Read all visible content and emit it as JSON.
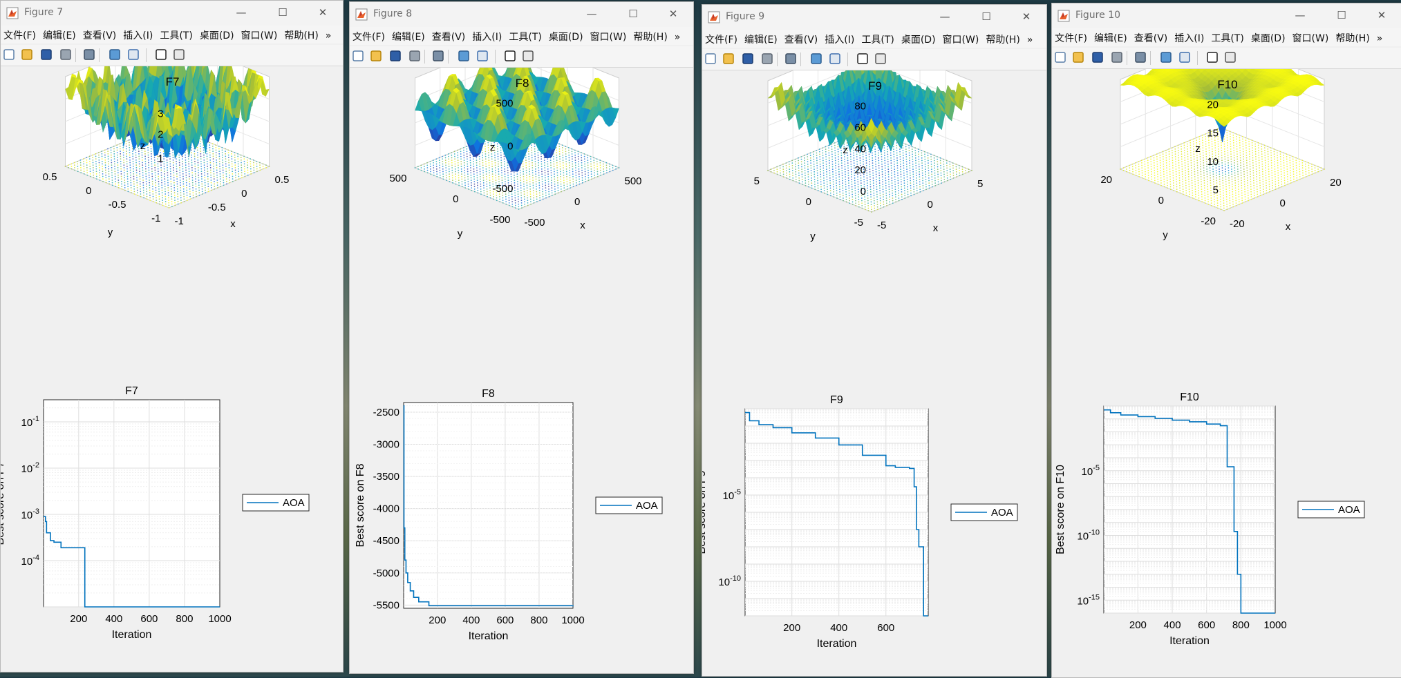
{
  "menu": [
    "文件(F)",
    "编辑(E)",
    "查看(V)",
    "插入(I)",
    "工具(T)",
    "桌面(D)",
    "窗口(W)",
    "帮助(H)"
  ],
  "menu_overflow": "»",
  "window_controls": {
    "minimize": "—",
    "maximize": "☐",
    "close": "✕"
  },
  "figures": [
    {
      "window_title": "Figure 7",
      "surface": {
        "title": "F7",
        "xlabel": "x",
        "ylabel": "y",
        "zlabel": "z",
        "zticks": [
          "1",
          "2",
          "3"
        ],
        "yticks": [
          "0.5",
          "0",
          "-0.5",
          "-1"
        ],
        "xticks": [
          "-1",
          "-0.5",
          "0",
          "0.5"
        ]
      },
      "convergence": {
        "title": "F7",
        "xlabel": "Iteration",
        "ylabel": "Best score on F7",
        "xticks": [
          "200",
          "400",
          "600",
          "800",
          "1000"
        ],
        "yticks": [
          {
            "b": "10",
            "e": "-1"
          },
          {
            "b": "10",
            "e": "-2"
          },
          {
            "b": "10",
            "e": "-3"
          },
          {
            "b": "10",
            "e": "-4"
          }
        ],
        "legend": "AOA"
      }
    },
    {
      "window_title": "Figure 8",
      "surface": {
        "title": "F8",
        "xlabel": "x",
        "ylabel": "y",
        "zlabel": "z",
        "zticks": [
          "500",
          "0",
          "-500"
        ],
        "yticks": [
          "500",
          "0",
          "-500"
        ],
        "xticks": [
          "-500",
          "0",
          "500"
        ]
      },
      "convergence": {
        "title": "F8",
        "xlabel": "Iteration",
        "ylabel": "Best score on F8",
        "xticks": [
          "200",
          "400",
          "600",
          "800",
          "1000"
        ],
        "yticks": [
          "-2500",
          "-3000",
          "-3500",
          "-4000",
          "-4500",
          "-5000",
          "-5500"
        ],
        "legend": "AOA"
      }
    },
    {
      "window_title": "Figure 9",
      "surface": {
        "title": "F9",
        "xlabel": "x",
        "ylabel": "y",
        "zlabel": "z",
        "zticks": [
          "80",
          "60",
          "40",
          "20",
          "0"
        ],
        "yticks": [
          "5",
          "0",
          "-5"
        ],
        "xticks": [
          "-5",
          "0",
          "5"
        ]
      },
      "convergence": {
        "title": "F9",
        "xlabel": "Iteration",
        "ylabel": "Best score on F9",
        "xticks": [
          "200",
          "400",
          "600"
        ],
        "yticks": [
          {
            "b": "10",
            "e": "-5"
          },
          {
            "b": "10",
            "e": "-10"
          }
        ],
        "legend": "AOA"
      }
    },
    {
      "window_title": "Figure 10",
      "surface": {
        "title": "F10",
        "xlabel": "x",
        "ylabel": "y",
        "zlabel": "z",
        "zticks": [
          "20",
          "15",
          "10",
          "5"
        ],
        "yticks": [
          "20",
          "0",
          "-20"
        ],
        "xticks": [
          "-20",
          "0",
          "20"
        ]
      },
      "convergence": {
        "title": "F10",
        "xlabel": "Iteration",
        "ylabel": "Best score on F10",
        "xticks": [
          "200",
          "400",
          "600",
          "800",
          "1000"
        ],
        "yticks": [
          {
            "b": "10",
            "e": "-5"
          },
          {
            "b": "10",
            "e": "-10"
          },
          {
            "b": "10",
            "e": "-15"
          }
        ],
        "legend": "AOA"
      }
    }
  ],
  "chart_data": [
    {
      "type": "line",
      "title": "F7",
      "xlabel": "Iteration",
      "ylabel": "Best score on F7",
      "yscale": "log",
      "xlim": [
        1,
        1000
      ],
      "ylim": [
        1e-05,
        0.3
      ],
      "series": [
        {
          "name": "AOA",
          "x": [
            1,
            12,
            18,
            40,
            60,
            100,
            230,
            235,
            1000
          ],
          "y": [
            0.0009,
            0.0007,
            0.0004,
            0.00027,
            0.00025,
            0.00019,
            0.00019,
            1e-05,
            1e-05
          ]
        }
      ],
      "color": "#0072BD",
      "grid": true,
      "legend": "right"
    },
    {
      "type": "line",
      "title": "F8",
      "xlabel": "Iteration",
      "ylabel": "Best score on F8",
      "xlim": [
        1,
        1000
      ],
      "ylim": [
        -5550,
        -2350
      ],
      "series": [
        {
          "name": "AOA",
          "x": [
            1,
            3,
            8,
            15,
            25,
            40,
            60,
            90,
            150,
            1000
          ],
          "y": [
            -2400,
            -4300,
            -4800,
            -5000,
            -5150,
            -5280,
            -5380,
            -5450,
            -5510,
            -5520
          ]
        }
      ],
      "color": "#0072BD",
      "grid": true,
      "legend": "right"
    },
    {
      "type": "line",
      "title": "F9",
      "xlabel": "Iteration",
      "ylabel": "Best score on F9",
      "yscale": "log",
      "xlim": [
        1,
        780
      ],
      "ylim": [
        1e-12,
        1
      ],
      "series": [
        {
          "name": "AOA",
          "x": [
            1,
            20,
            60,
            120,
            200,
            300,
            400,
            500,
            600,
            640,
            700,
            720,
            730,
            740,
            760,
            770,
            780
          ],
          "y": [
            0.6,
            0.2,
            0.12,
            0.08,
            0.04,
            0.02,
            0.008,
            0.002,
            0.0005,
            0.0004,
            0.00035,
            3e-05,
            1e-07,
            1e-08,
            1e-12,
            1e-12,
            1e-12
          ]
        }
      ],
      "color": "#0072BD",
      "grid": true,
      "legend": "right"
    },
    {
      "type": "line",
      "title": "F10",
      "xlabel": "Iteration",
      "ylabel": "Best score on F10",
      "yscale": "log",
      "xlim": [
        1,
        1000
      ],
      "ylim": [
        1e-16,
        1
      ],
      "series": [
        {
          "name": "AOA",
          "x": [
            1,
            40,
            100,
            200,
            300,
            400,
            500,
            600,
            680,
            720,
            760,
            780,
            800,
            820,
            1000
          ],
          "y": [
            0.5,
            0.3,
            0.2,
            0.15,
            0.11,
            0.08,
            0.06,
            0.04,
            0.03,
            2e-05,
            2e-10,
            1e-13,
            1e-16,
            1e-16,
            1e-16
          ]
        }
      ],
      "color": "#0072BD",
      "grid": true,
      "legend": "right"
    }
  ]
}
